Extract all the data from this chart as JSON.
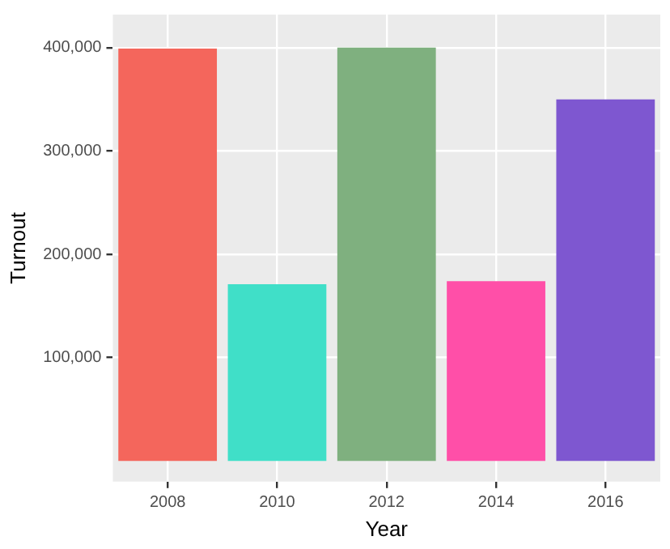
{
  "chart_data": {
    "type": "bar",
    "xlabel": "Year",
    "ylabel": "Turnout",
    "categories": [
      "2008",
      "2010",
      "2012",
      "2014",
      "2016"
    ],
    "values": [
      399000,
      171000,
      400000,
      174000,
      350000
    ],
    "colors": [
      "#f4665c",
      "#40dfc8",
      "#7fb07f",
      "#ff4fa8",
      "#7e57d0"
    ],
    "ylim": [
      -20000,
      432000
    ],
    "yticks": [
      {
        "value": 100000,
        "label": "100,000"
      },
      {
        "value": 200000,
        "label": "200,000"
      },
      {
        "value": 300000,
        "label": "300,000"
      },
      {
        "value": 400000,
        "label": "400,000"
      }
    ],
    "grid": true
  }
}
